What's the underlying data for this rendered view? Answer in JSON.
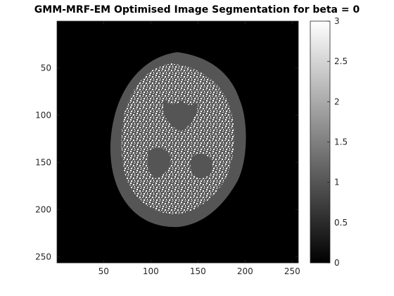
{
  "figure": {
    "title": "GMM-MRF-EM Optimised Image Segmentation for beta = 0"
  },
  "image_axes": {
    "x_ticks": [
      50,
      100,
      150,
      200,
      250
    ],
    "y_ticks": [
      50,
      100,
      150,
      200,
      250
    ],
    "x_range": [
      0.5,
      256.5
    ],
    "y_range": [
      0.5,
      256.5
    ],
    "y_direction": "reverse"
  },
  "colorbar": {
    "colormap": "gray",
    "range": [
      0,
      3
    ],
    "ticks": [
      "0",
      "0.5",
      "1",
      "1.5",
      "2",
      "2.5",
      "3"
    ],
    "tick_values": [
      0,
      0.5,
      1,
      1.5,
      2,
      2.5,
      3
    ]
  },
  "segmentation": {
    "classes": [
      0,
      1,
      2,
      3
    ],
    "class_colors": [
      "#000000",
      "#555555",
      "#aaaaaa",
      "#ffffff"
    ],
    "background_class": 0
  }
}
